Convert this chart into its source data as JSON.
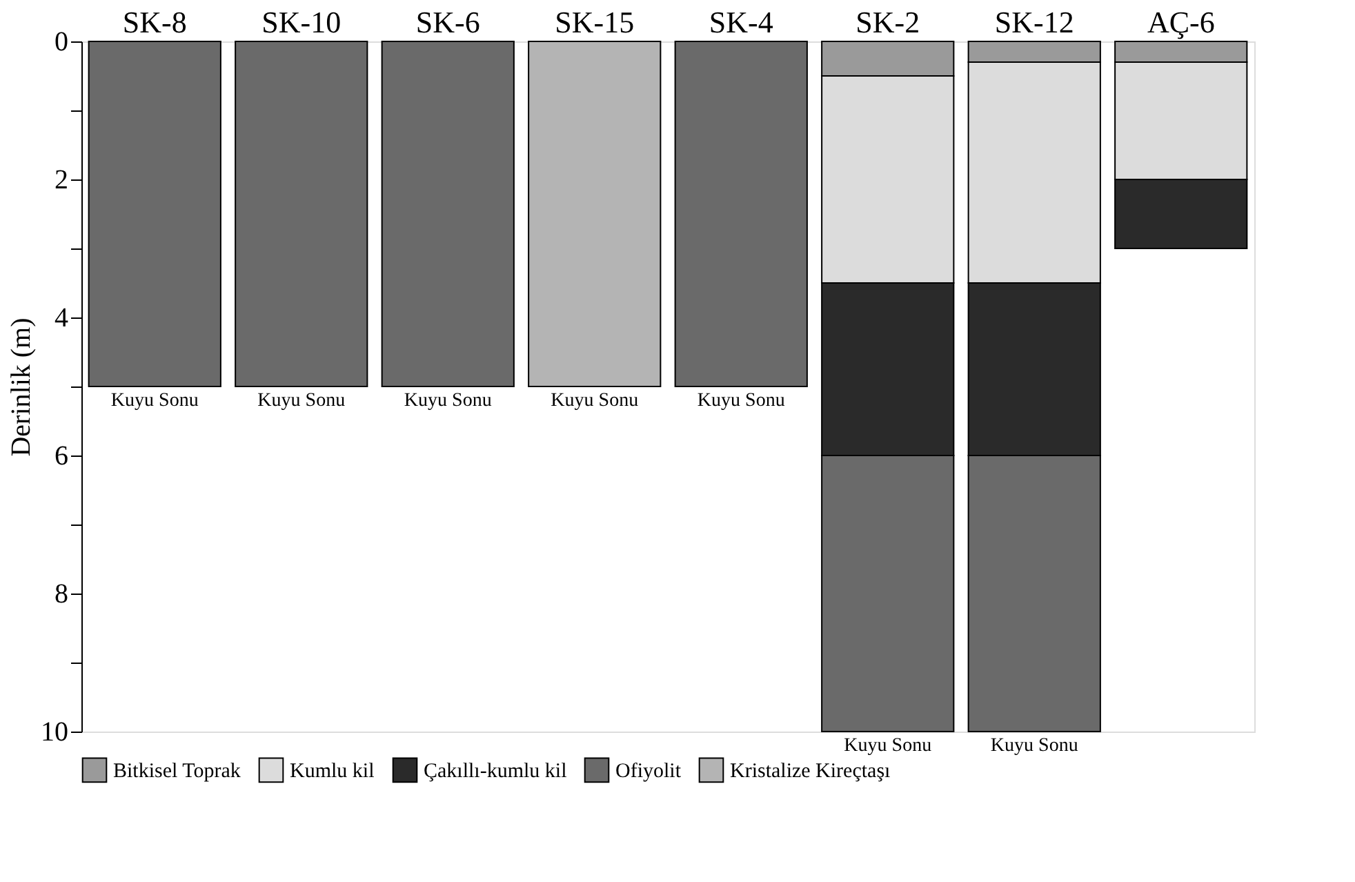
{
  "chart_data": {
    "type": "bar",
    "stacked": true,
    "ylabel": "Derinlik (m)",
    "categories": [
      "SK-8",
      "SK-10",
      "SK-6",
      "SK-15",
      "SK-4",
      "SK-2",
      "SK-12",
      "AÇ-6"
    ],
    "series": [
      {
        "name": "Bitkisel Toprak",
        "color": "#9a9a9a",
        "values": [
          null,
          null,
          null,
          null,
          null,
          0.5,
          0.3,
          0.3
        ]
      },
      {
        "name": "Kumlu kil",
        "color": "#dcdcdc",
        "values": [
          null,
          null,
          null,
          null,
          null,
          3.0,
          3.2,
          1.7
        ]
      },
      {
        "name": "Çakıllı-kumlu kil",
        "color": "#2a2a2a",
        "values": [
          null,
          null,
          null,
          null,
          null,
          2.5,
          2.5,
          1.0
        ]
      },
      {
        "name": "Ofiyolit",
        "color": "#6a6a6a",
        "values": [
          5,
          5,
          5,
          null,
          5,
          4,
          4,
          null
        ]
      },
      {
        "name": "Kristalize Kireçtaşı",
        "color": "#b4b4b4",
        "values": [
          null,
          null,
          null,
          5,
          null,
          null,
          null,
          null
        ]
      }
    ],
    "ylim": [
      10,
      0
    ],
    "yticks": [
      0,
      {
        "value": 1,
        "label": null
      },
      2,
      {
        "value": 3,
        "label": null
      },
      4,
      {
        "value": 5,
        "label": null
      },
      6,
      {
        "value": 7,
        "label": null
      },
      8,
      {
        "value": 9,
        "label": null
      },
      10
    ],
    "annotations": [
      {
        "text": "Kuyu Sonu",
        "x": "SK-8",
        "y": 5
      },
      {
        "text": "Kuyu Sonu",
        "x": "SK-10",
        "y": 5
      },
      {
        "text": "Kuyu Sonu",
        "x": "SK-6",
        "y": 5
      },
      {
        "text": "Kuyu Sonu",
        "x": "SK-15",
        "y": 5
      },
      {
        "text": "Kuyu Sonu",
        "x": "SK-4",
        "y": 5
      },
      {
        "text": "Kuyu Sonu",
        "x": "SK-2",
        "y": 10
      },
      {
        "text": "Kuyu Sonu",
        "x": "SK-12",
        "y": 10
      }
    ],
    "legend": "bottom",
    "grid": false
  }
}
